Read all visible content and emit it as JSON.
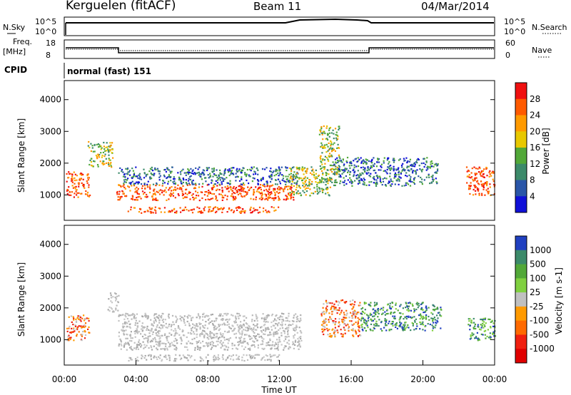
{
  "header": {
    "station": "Kerguelen (fitACF)",
    "beam": "Beam 11",
    "date": "04/Mar/2014"
  },
  "aux_panels": {
    "nsky_label": "N.Sky",
    "nsearch_label": "N.Search",
    "freq_label_1": "Freq.",
    "freq_label_2": "[MHz]",
    "nave_label": "Nave",
    "cpid_label": "CPID",
    "cpid_value": "normal (fast) 151",
    "nsky_ticks": [
      "10^5",
      "10^0"
    ],
    "nsearch_ticks": [
      "10^5",
      "10^0"
    ],
    "freq_ticks": [
      "18",
      "8"
    ],
    "nave_ticks": [
      "60",
      "0"
    ]
  },
  "chart_data": [
    {
      "type": "heatmap",
      "name": "Power panel",
      "xlabel": "Time UT",
      "ylabel": "Slant Range [km]",
      "xlim": [
        0,
        24
      ],
      "ylim": [
        200,
        4600
      ],
      "y_ticks": [
        "1000",
        "2000",
        "3000",
        "4000"
      ],
      "colorbar": {
        "label": "Power [dB]",
        "ticks": [
          "28",
          "24",
          "20",
          "16",
          "12",
          "8",
          "4"
        ],
        "colors": [
          "#f01010",
          "#ff5a00",
          "#ff9a00",
          "#e8c800",
          "#52a838",
          "#3c8a6a",
          "#2a56a8",
          "#1010d8"
        ]
      },
      "regions": [
        {
          "t0": 0.1,
          "t1": 1.4,
          "r0": 950,
          "r1": 1750,
          "level": "high"
        },
        {
          "t0": 1.3,
          "t1": 2.7,
          "r0": 1900,
          "r1": 2700,
          "level": "mid"
        },
        {
          "t0": 2.9,
          "t1": 12.8,
          "r0": 850,
          "r1": 1350,
          "level": "high"
        },
        {
          "t0": 3.5,
          "t1": 12.0,
          "r0": 450,
          "r1": 650,
          "level": "high"
        },
        {
          "t0": 3.0,
          "t1": 13.0,
          "r0": 1350,
          "r1": 1900,
          "level": "low"
        },
        {
          "t0": 12.5,
          "t1": 14.8,
          "r0": 1000,
          "r1": 1900,
          "level": "mid"
        },
        {
          "t0": 14.2,
          "t1": 15.3,
          "r0": 1400,
          "r1": 3200,
          "level": "mid"
        },
        {
          "t0": 15.0,
          "t1": 20.8,
          "r0": 1300,
          "r1": 2200,
          "level": "low"
        },
        {
          "t0": 22.4,
          "t1": 24.0,
          "r0": 1000,
          "r1": 1900,
          "level": "high"
        }
      ]
    },
    {
      "type": "heatmap",
      "name": "Velocity panel",
      "xlabel": "Time UT",
      "ylabel": "Slant Range [km]",
      "xlim": [
        0,
        24
      ],
      "ylim": [
        200,
        4600
      ],
      "x_ticks": [
        "00:00",
        "04:00",
        "08:00",
        "12:00",
        "16:00",
        "20:00",
        "00:00"
      ],
      "y_ticks": [
        "1000",
        "2000",
        "3000",
        "4000"
      ],
      "colorbar": {
        "label": "Velocity [m s-1]",
        "ticks": [
          "1000",
          "500",
          "100",
          "25",
          "-25",
          "-100",
          "-500",
          "-1000"
        ],
        "colors": [
          "#2040c0",
          "#3c8a6a",
          "#52a838",
          "#80d040",
          "#c0c0c0",
          "#ff9a00",
          "#ff6a00",
          "#f02010",
          "#e00000"
        ]
      },
      "regions": [
        {
          "t0": 0.1,
          "t1": 1.4,
          "r0": 1000,
          "r1": 1800,
          "level": "neg"
        },
        {
          "t0": 2.4,
          "t1": 3.0,
          "r0": 1900,
          "r1": 2500,
          "level": "zero"
        },
        {
          "t0": 3.0,
          "t1": 13.2,
          "r0": 700,
          "r1": 1850,
          "level": "zero"
        },
        {
          "t0": 3.5,
          "t1": 12.0,
          "r0": 350,
          "r1": 550,
          "level": "zero"
        },
        {
          "t0": 14.3,
          "t1": 16.5,
          "r0": 1100,
          "r1": 2300,
          "level": "neg"
        },
        {
          "t0": 16.5,
          "t1": 21.0,
          "r0": 1300,
          "r1": 2200,
          "level": "pos"
        },
        {
          "t0": 22.5,
          "t1": 24.0,
          "r0": 1000,
          "r1": 1700,
          "level": "pos"
        }
      ]
    }
  ]
}
